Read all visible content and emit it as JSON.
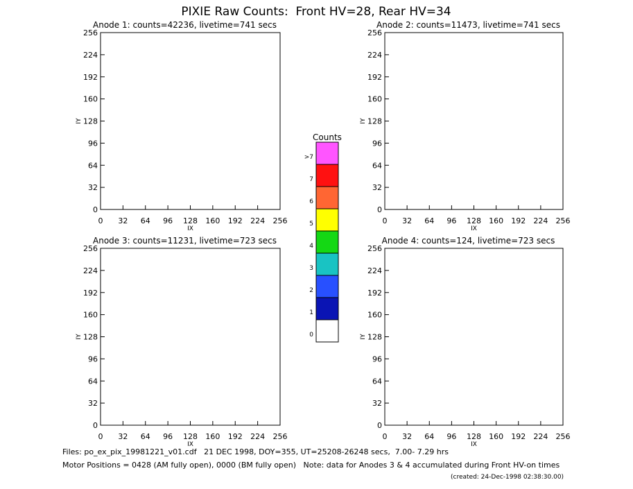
{
  "title": "PIXIE Raw Counts:  Front HV=28, Rear HV=34",
  "chart_data": [
    {
      "type": "heatmap",
      "title": "Anode 1: counts=42236, livetime=741 secs",
      "xlabel": "IX",
      "ylabel": "IY",
      "xlim": [
        0,
        256
      ],
      "ylim": [
        0,
        256
      ],
      "xticks": [
        0,
        32,
        64,
        96,
        128,
        160,
        192,
        224,
        256
      ],
      "yticks": [
        0,
        32,
        64,
        96,
        128,
        160,
        192,
        224,
        256
      ]
    },
    {
      "type": "heatmap",
      "title": "Anode 2: counts=11473, livetime=741 secs",
      "xlabel": "IX",
      "ylabel": "IY",
      "xlim": [
        0,
        256
      ],
      "ylim": [
        0,
        256
      ],
      "xticks": [
        0,
        32,
        64,
        96,
        128,
        160,
        192,
        224,
        256
      ],
      "yticks": [
        0,
        32,
        64,
        96,
        128,
        160,
        192,
        224,
        256
      ]
    },
    {
      "type": "heatmap",
      "title": "Anode 3: counts=11231, livetime=723 secs",
      "xlabel": "IX",
      "ylabel": "IY",
      "xlim": [
        0,
        256
      ],
      "ylim": [
        0,
        256
      ],
      "xticks": [
        0,
        32,
        64,
        96,
        128,
        160,
        192,
        224,
        256
      ],
      "yticks": [
        0,
        32,
        64,
        96,
        128,
        160,
        192,
        224,
        256
      ]
    },
    {
      "type": "heatmap",
      "title": "Anode 4: counts=124, livetime=723 secs",
      "xlabel": "IX",
      "ylabel": "IY",
      "xlim": [
        0,
        256
      ],
      "ylim": [
        0,
        256
      ],
      "xticks": [
        0,
        32,
        64,
        96,
        128,
        160,
        192,
        224,
        256
      ],
      "yticks": [
        0,
        32,
        64,
        96,
        128,
        160,
        192,
        224,
        256
      ]
    }
  ],
  "colorbar": {
    "title": "Counts",
    "labels": [
      0,
      1,
      2,
      3,
      4,
      5,
      6,
      7,
      ">7"
    ],
    "colors": [
      "#ffffff",
      "#0a14b4",
      "#2850ff",
      "#19c3c3",
      "#14d814",
      "#ffff00",
      "#ff6633",
      "#ff1111",
      "#ff55ff"
    ]
  },
  "footer": {
    "files": "Files: po_ex_pix_19981221_v01.cdf   21 DEC 1998, DOY=355, UT=25208-26248 secs,  7.00- 7.29 hrs",
    "motor": "Motor Positions = 0428 (AM fully open), 0000 (BM fully open)   Note: data for Anodes 3 & 4 accumulated during Front HV-on times",
    "created": "(created: 24-Dec-1998 02:38:30.00)"
  }
}
